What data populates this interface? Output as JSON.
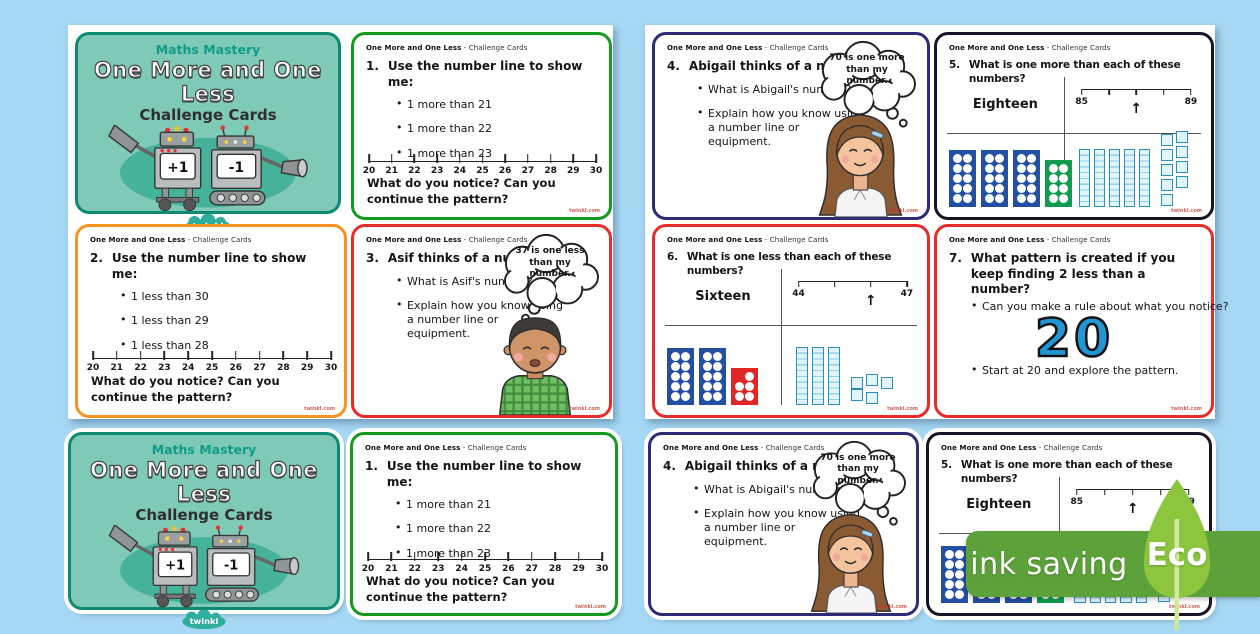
{
  "page_bg": "#a6d8f5",
  "watermark": "twinkl.com",
  "card_header": {
    "title": "One More and One Less",
    "suffix": " - Challenge Cards"
  },
  "title_card": {
    "kicker": "Maths Mastery",
    "title": "One More and One Less",
    "subtitle": "Challenge Cards",
    "robot_left_label": "+1",
    "robot_right_label": "-1",
    "logo_text": "twinkl"
  },
  "banner": {
    "label": "ink saving",
    "eco_label": "Eco"
  },
  "colors": {
    "background_blue": "#a6d8f5",
    "title_teal": "#7ecab6",
    "border_teal": "#0f8a72",
    "border_green": "#149a1e",
    "border_orange": "#f79421",
    "border_red": "#e62b2b",
    "border_navy": "#2d2b78",
    "border_black": "#141625",
    "banner_green": "#5ca13a",
    "leaf_green": "#8cc63e",
    "big_number_blue": "#1e97d4"
  },
  "cards": {
    "c1": {
      "num": "1.",
      "question": "Use the number line to show me:",
      "bullets": [
        "1 more than 21",
        "1 more than 22",
        "1 more than 23"
      ],
      "numberline": {
        "labels": [
          "20",
          "21",
          "22",
          "23",
          "24",
          "25",
          "26",
          "27",
          "28",
          "29",
          "30"
        ]
      },
      "footer": "What do you notice? Can you continue the pattern?"
    },
    "c2": {
      "num": "2.",
      "question": "Use the number line to show me:",
      "bullets": [
        "1 less than 30",
        "1 less than 29",
        "1 less than 28"
      ],
      "numberline": {
        "labels": [
          "20",
          "21",
          "22",
          "23",
          "24",
          "25",
          "26",
          "27",
          "28",
          "29",
          "30"
        ]
      },
      "footer": "What do you notice? Can you continue the pattern?"
    },
    "c3": {
      "num": "3.",
      "question": "Asif thinks of a number.",
      "bullets": [
        "What is Asif's number?",
        "Explain how you know using a number line or equipment."
      ],
      "bubble": "37 is one less than my number."
    },
    "c4": {
      "num": "4.",
      "question": "Abigail thinks of a number.",
      "bullets": [
        "What is Abigail's number?",
        "Explain how you know using a number line or equipment."
      ],
      "bubble": "70 is one more than my number."
    },
    "c5": {
      "num": "5.",
      "question": "What is one more than each of these numbers?",
      "word": "Eighteen",
      "numberline": {
        "start": "85",
        "end": "89",
        "ticks": 5,
        "arrow_index": 2
      },
      "ten_frames": {
        "frames": [
          {
            "color": "#2450a4",
            "rows": 5,
            "cols": 2,
            "count": 10
          },
          {
            "color": "#2450a4",
            "rows": 5,
            "cols": 2,
            "count": 10
          },
          {
            "color": "#2450a4",
            "rows": 5,
            "cols": 2,
            "count": 10
          },
          {
            "color": "#0f9c4e",
            "rows": 4,
            "cols": 2,
            "count": 8
          }
        ]
      },
      "base_ten": {
        "rods": 5,
        "cubes": 9
      }
    },
    "c6": {
      "num": "6.",
      "question": "What is one less than each of these numbers?",
      "word": "Sixteen",
      "numberline": {
        "start": "44",
        "end": "47",
        "ticks": 4,
        "arrow_index": 2
      },
      "ten_frames": {
        "frames": [
          {
            "color": "#2450a4",
            "rows": 5,
            "cols": 2,
            "count": 10
          },
          {
            "color": "#2450a4",
            "rows": 5,
            "cols": 2,
            "count": 10
          },
          {
            "color": "#e02626",
            "rows": 3,
            "cols": 2,
            "count": 5
          }
        ]
      },
      "base_ten": {
        "rods": 3,
        "cubes": 5
      }
    },
    "c7": {
      "num": "7.",
      "question": "What pattern is created if you keep finding 2 less than a number?",
      "bullets": [
        "Start at 20 and explore the pattern.",
        "Can you make a rule about what you notice?"
      ],
      "big_number": "20"
    }
  }
}
